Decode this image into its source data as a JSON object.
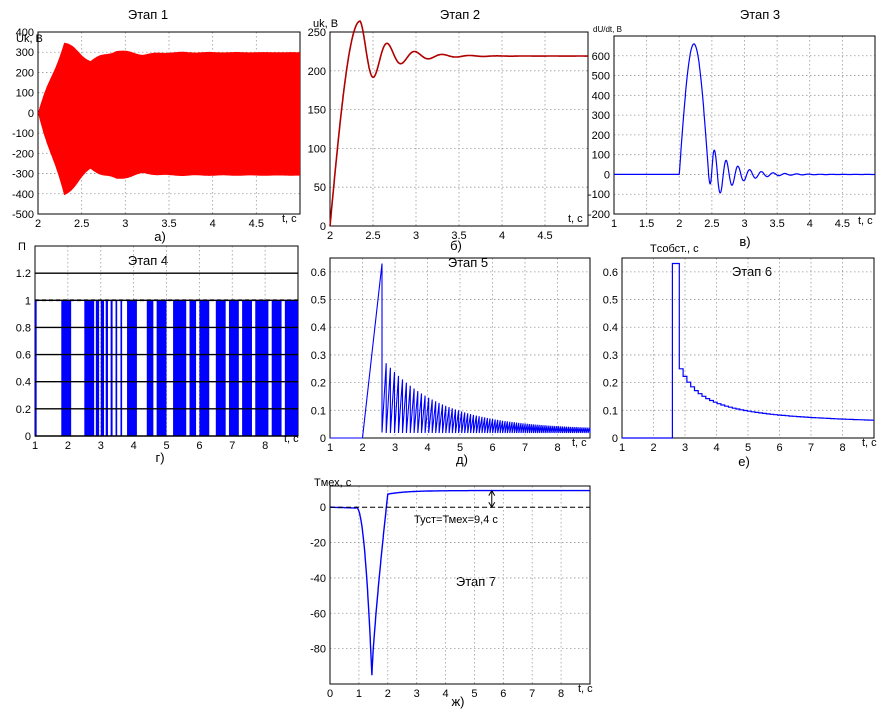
{
  "colors": {
    "red": "#ff0000",
    "darkred": "#b00000",
    "blue": "#0000ff",
    "grid": "#9a9a9a"
  },
  "chart_data": [
    {
      "type": "area",
      "title": "Этап 1",
      "caption": "а)",
      "ylabel": "Uk, В",
      "xlabel": "t, c",
      "xlim": [
        2,
        5
      ],
      "ylim": [
        -500,
        400
      ],
      "xticks": [
        2,
        2.5,
        3,
        3.5,
        4,
        4.5
      ],
      "xtick_labels": [
        "2",
        "2.5",
        "3",
        "3.5",
        "4",
        "4.5"
      ],
      "yticks": [
        -500,
        -400,
        -300,
        -200,
        -100,
        0,
        100,
        200,
        300,
        400
      ],
      "ytick_labels": [
        "-500",
        "-400",
        "-300",
        "-200",
        "-100",
        "0",
        "100",
        "200",
        "300",
        "400"
      ],
      "envelope": {
        "t": [
          2,
          2.3,
          2.6,
          2.9,
          3.2,
          3.5,
          5
        ],
        "upper": [
          0,
          350,
          260,
          310,
          290,
          300,
          300
        ],
        "lower": [
          0,
          -410,
          -280,
          -330,
          -300,
          -310,
          -310
        ]
      },
      "series": [
        {
          "color": "red"
        }
      ]
    },
    {
      "type": "line",
      "title": "Этап 2",
      "caption": "б)",
      "ylabel": "uk, В",
      "xlabel": "t, c",
      "xlim": [
        2,
        5
      ],
      "ylim": [
        0,
        250
      ],
      "xticks": [
        2,
        2.5,
        3,
        3.5,
        4,
        4.5
      ],
      "xtick_labels": [
        "2",
        "2.5",
        "3",
        "3.5",
        "4",
        "4.5"
      ],
      "yticks": [
        0,
        50,
        100,
        150,
        200,
        250
      ],
      "ytick_labels": [
        "0",
        "50",
        "100",
        "150",
        "200",
        "250"
      ],
      "series": [
        {
          "color": "darkred",
          "steady": 219,
          "peak": 264,
          "t_start": 2.0,
          "t_peak": 2.35
        }
      ]
    },
    {
      "type": "line",
      "title": "Этап 3",
      "caption": "в)",
      "ylabel": "dU/dt, В",
      "xlabel": "t, c",
      "xlim": [
        1,
        5
      ],
      "ylim": [
        -200,
        700
      ],
      "xticks": [
        1,
        1.5,
        2,
        2.5,
        3,
        3.5,
        4,
        4.5
      ],
      "xtick_labels": [
        "1",
        "1.5",
        "2",
        "2.5",
        "3",
        "3.5",
        "4",
        "4.5"
      ],
      "yticks": [
        -200,
        -100,
        0,
        100,
        200,
        300,
        400,
        500,
        600
      ],
      "ytick_labels": [
        "-200",
        "-100",
        "0",
        "100",
        "200",
        "300",
        "400",
        "500",
        "600"
      ],
      "series": [
        {
          "color": "blue",
          "t_start": 2.0,
          "t_peak": 2.25,
          "peak": 660,
          "trough": -160
        }
      ]
    },
    {
      "type": "bar",
      "title": "Этап 4",
      "caption": "г)",
      "ylabel": "П",
      "xlabel": "t, c",
      "xlim": [
        1,
        9
      ],
      "ylim": [
        0,
        1.4
      ],
      "xticks": [
        1,
        2,
        3,
        4,
        5,
        6,
        7,
        8
      ],
      "xtick_labels": [
        "1",
        "2",
        "3",
        "4",
        "5",
        "6",
        "7",
        "8"
      ],
      "yticks": [
        0,
        0.2,
        0.4,
        0.6,
        0.8,
        1,
        1.2
      ],
      "ytick_labels": [
        "0",
        "0.2",
        "0.4",
        "0.6",
        "0.8",
        "1",
        "1.2"
      ],
      "reference_line": 1.0,
      "series": [
        {
          "color": "blue",
          "level": 1.0,
          "pulses": [
            [
              1.0,
              1.05
            ],
            [
              1.8,
              2.1
            ],
            [
              2.5,
              2.8
            ],
            [
              2.85,
              2.95
            ],
            [
              3.0,
              3.1
            ],
            [
              3.15,
              3.22
            ],
            [
              3.3,
              3.36
            ],
            [
              3.45,
              3.5
            ],
            [
              3.6,
              3.65
            ],
            [
              3.8,
              4.1
            ],
            [
              4.4,
              4.6
            ],
            [
              4.7,
              5.0
            ],
            [
              5.2,
              5.6
            ],
            [
              5.7,
              5.9
            ],
            [
              6.0,
              6.3
            ],
            [
              6.5,
              6.8
            ],
            [
              6.9,
              7.2
            ],
            [
              7.3,
              7.6
            ],
            [
              7.7,
              8.1
            ],
            [
              8.2,
              8.5
            ],
            [
              8.6,
              9.0
            ]
          ]
        }
      ]
    },
    {
      "type": "line",
      "title": "Этап 5",
      "caption": "д)",
      "xlabel": "t, c",
      "xlim": [
        1,
        9
      ],
      "ylim": [
        0,
        0.65
      ],
      "xticks": [
        1,
        2,
        3,
        4,
        5,
        6,
        7,
        8
      ],
      "xtick_labels": [
        "1",
        "2",
        "3",
        "4",
        "5",
        "6",
        "7",
        "8"
      ],
      "yticks": [
        0,
        0.1,
        0.2,
        0.3,
        0.4,
        0.5,
        0.6
      ],
      "ytick_labels": [
        "0",
        "0.1",
        "0.2",
        "0.3",
        "0.4",
        "0.5",
        "0.6"
      ],
      "series": [
        {
          "color": "blue",
          "t_start": 2.0,
          "peak": 0.63,
          "t_peak": 2.6,
          "final": 0.03
        }
      ]
    },
    {
      "type": "line",
      "title": "Этап 6",
      "caption": "е)",
      "ylabel": "Tсобст., с",
      "xlabel": "t, c",
      "xlim": [
        1,
        9
      ],
      "ylim": [
        0,
        0.65
      ],
      "xticks": [
        1,
        2,
        3,
        4,
        5,
        6,
        7,
        8
      ],
      "xtick_labels": [
        "1",
        "2",
        "3",
        "4",
        "5",
        "6",
        "7",
        "8"
      ],
      "yticks": [
        0,
        0.1,
        0.2,
        0.3,
        0.4,
        0.5,
        0.6
      ],
      "ytick_labels": [
        "0",
        "0.1",
        "0.2",
        "0.3",
        "0.4",
        "0.5",
        "0.6"
      ],
      "series": [
        {
          "color": "blue",
          "t_jump": 2.6,
          "plateau": 0.63,
          "t_drop": 2.82,
          "final": 0.04
        }
      ]
    },
    {
      "type": "line",
      "title": "Этап 7",
      "caption": "ж)",
      "ylabel": "Tмех, с",
      "xlabel": "t, c",
      "xlim": [
        0,
        9
      ],
      "ylim": [
        -100,
        12
      ],
      "xticks": [
        0,
        1,
        2,
        3,
        4,
        5,
        6,
        7,
        8
      ],
      "xtick_labels": [
        "0",
        "1",
        "2",
        "3",
        "4",
        "5",
        "6",
        "7",
        "8"
      ],
      "yticks": [
        -80,
        -60,
        -40,
        -20,
        0
      ],
      "ytick_labels": [
        "-80",
        "-60",
        "-40",
        "-20",
        "0"
      ],
      "annotation": "Туст=Тмех=9,4 с",
      "steady": 9.4,
      "series": [
        {
          "color": "blue",
          "t_min": 1.45,
          "minimum": -95,
          "steady": 9.4
        }
      ]
    }
  ]
}
